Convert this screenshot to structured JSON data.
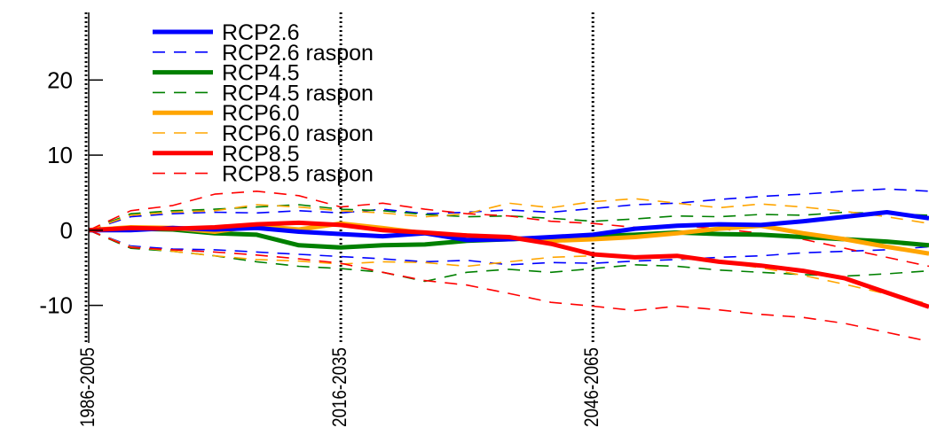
{
  "chart_data": {
    "type": "line",
    "xlim": [
      1995,
      2095
    ],
    "ylim": [
      -15,
      29
    ],
    "grid": false,
    "legend_placement": "top-left",
    "yticks": [
      {
        "value": 20,
        "label": "20"
      },
      {
        "value": 10,
        "label": "10"
      },
      {
        "value": 0,
        "label": "0"
      },
      {
        "value": -10,
        "label": "-10"
      }
    ],
    "xticks": [
      {
        "value": 1995,
        "label": "1986-2005"
      },
      {
        "value": 2025,
        "label": "2016-2035"
      },
      {
        "value": 2055,
        "label": "2046-2065"
      }
    ],
    "series": [
      {
        "name": "RCP2.6",
        "color": "#0000ff",
        "style": "solid",
        "x": [
          1995,
          2000,
          2005,
          2010,
          2015,
          2020,
          2025,
          2030,
          2035,
          2040,
          2045,
          2050,
          2055,
          2060,
          2065,
          2070,
          2075,
          2080,
          2085,
          2090,
          2095
        ],
        "y": [
          0,
          0,
          0.3,
          0.1,
          0.3,
          -0.2,
          -0.5,
          -0.8,
          -0.4,
          -1.3,
          -1.2,
          -0.9,
          -0.6,
          0.2,
          0.6,
          0.8,
          0.7,
          1.2,
          1.8,
          2.4,
          1.6
        ]
      },
      {
        "name": "RCP2.6 raspon",
        "color": "#0000ff",
        "style": "dashed",
        "x": [
          1995,
          2000,
          2005,
          2010,
          2015,
          2020,
          2025,
          2030,
          2035,
          2040,
          2045,
          2050,
          2055,
          2060,
          2065,
          2070,
          2075,
          2080,
          2085,
          2090,
          2095,
          1995,
          2000,
          2005,
          2010,
          2015,
          2020,
          2025,
          2030,
          2035,
          2040,
          2045,
          2050,
          2055,
          2060,
          2065,
          2070,
          2075,
          2080,
          2085,
          2090,
          2095
        ],
        "y": [
          0,
          1.8,
          2.2,
          2.4,
          2.3,
          2.6,
          2.3,
          2.8,
          2.2,
          2.4,
          2.7,
          2.4,
          2.9,
          3.4,
          3.6,
          4.1,
          4.5,
          4.8,
          5.2,
          5.5,
          5.2,
          0,
          -2.1,
          -2.5,
          -2.6,
          -2.9,
          -3.2,
          -3.5,
          -3.8,
          -4.2,
          -4.0,
          -4.6,
          -4.3,
          -4.4,
          -4.1,
          -3.9,
          -3.6,
          -3.4,
          -3.0,
          -2.8,
          -2.6,
          -2.2
        ]
      },
      {
        "name": "RCP4.5",
        "color": "#008000",
        "style": "solid",
        "x": [
          1995,
          2000,
          2005,
          2010,
          2015,
          2020,
          2025,
          2030,
          2035,
          2040,
          2045,
          2050,
          2055,
          2060,
          2065,
          2070,
          2075,
          2080,
          2085,
          2090,
          2095
        ],
        "y": [
          0,
          0.2,
          0.1,
          -0.4,
          -0.6,
          -2.0,
          -2.3,
          -2.0,
          -1.9,
          -1.4,
          -1.2,
          -1.0,
          -0.8,
          -0.6,
          -0.3,
          -0.5,
          -0.6,
          -0.9,
          -1.2,
          -1.5,
          -2.0
        ]
      },
      {
        "name": "RCP4.5 raspon",
        "color": "#008000",
        "style": "dashed",
        "x": [
          1995,
          2000,
          2005,
          2010,
          2015,
          2020,
          2025,
          2030,
          2035,
          2040,
          2045,
          2050,
          2055,
          2060,
          2065,
          2070,
          2075,
          2080,
          2085,
          2090,
          2095,
          1995,
          2000,
          2005,
          2010,
          2015,
          2020,
          2025,
          2030,
          2035,
          2040,
          2045,
          2050,
          2055,
          2060,
          2065,
          2070,
          2075,
          2080,
          2085,
          2090,
          2095
        ],
        "y": [
          0,
          2.2,
          2.6,
          2.8,
          3.1,
          3.4,
          2.8,
          2.6,
          2.1,
          1.8,
          1.9,
          1.6,
          1.2,
          1.5,
          1.9,
          1.8,
          2.1,
          2.0,
          2.4,
          2.2,
          2.0,
          0,
          -2.4,
          -2.8,
          -3.4,
          -4.2,
          -4.8,
          -5.1,
          -5.6,
          -6.8,
          -5.6,
          -5.2,
          -5.6,
          -5.1,
          -4.6,
          -4.8,
          -5.3,
          -5.6,
          -5.9,
          -6.1,
          -5.8,
          -5.4
        ]
      },
      {
        "name": "RCP6.0",
        "color": "#ffa500",
        "style": "solid",
        "x": [
          1995,
          2000,
          2005,
          2010,
          2015,
          2020,
          2025,
          2030,
          2035,
          2040,
          2045,
          2050,
          2055,
          2060,
          2065,
          2070,
          2075,
          2080,
          2085,
          2090,
          2095
        ],
        "y": [
          0,
          0.4,
          0.3,
          -0.2,
          0.6,
          0.1,
          0.9,
          0.3,
          -0.4,
          -0.7,
          -1.0,
          -1.4,
          -1.2,
          -0.9,
          -0.4,
          0.2,
          0.6,
          -0.4,
          -1.2,
          -2.2,
          -3.1
        ]
      },
      {
        "name": "RCP6.0 raspon",
        "color": "#ffa500",
        "style": "dashed",
        "x": [
          1995,
          2000,
          2005,
          2010,
          2015,
          2020,
          2025,
          2030,
          2035,
          2040,
          2045,
          2050,
          2055,
          2060,
          2065,
          2070,
          2075,
          2080,
          2085,
          2090,
          2095,
          1995,
          2000,
          2005,
          2010,
          2015,
          2020,
          2025,
          2030,
          2035,
          2040,
          2045,
          2050,
          2055,
          2060,
          2065,
          2070,
          2075,
          2080,
          2085,
          2090,
          2095
        ],
        "y": [
          0,
          2.0,
          2.4,
          2.6,
          3.4,
          3.1,
          2.6,
          2.3,
          1.8,
          2.2,
          3.6,
          3.0,
          3.8,
          4.2,
          3.6,
          3.0,
          3.5,
          3.1,
          2.5,
          1.8,
          0.9,
          0,
          -2.2,
          -2.8,
          -3.4,
          -3.9,
          -4.1,
          -4.5,
          -4.2,
          -4.3,
          -4.8,
          -4.2,
          -3.6,
          -3.4,
          -3.5,
          -3.7,
          -4.2,
          -5.0,
          -6.0,
          -7.2,
          -8.5,
          -9.8
        ]
      },
      {
        "name": "RCP8.5",
        "color": "#ff0000",
        "style": "solid",
        "x": [
          1995,
          2000,
          2005,
          2010,
          2015,
          2020,
          2025,
          2030,
          2035,
          2040,
          2045,
          2050,
          2055,
          2060,
          2065,
          2070,
          2075,
          2080,
          2085,
          2090,
          2095
        ],
        "y": [
          0,
          0.3,
          0.2,
          0.4,
          0.8,
          1.0,
          0.7,
          0.0,
          -0.3,
          -0.7,
          -0.9,
          -1.8,
          -3.2,
          -3.6,
          -3.4,
          -4.2,
          -4.7,
          -5.4,
          -6.4,
          -8.3,
          -10.2
        ]
      },
      {
        "name": "RCP8.5 raspon",
        "color": "#ff0000",
        "style": "dashed",
        "x": [
          1995,
          2000,
          2005,
          2010,
          2015,
          2020,
          2025,
          2030,
          2035,
          2040,
          2045,
          2050,
          2055,
          2060,
          2065,
          2070,
          2075,
          2080,
          2085,
          2090,
          2095,
          1995,
          2000,
          2005,
          2010,
          2015,
          2020,
          2025,
          2030,
          2035,
          2040,
          2045,
          2050,
          2055,
          2060,
          2065,
          2070,
          2075,
          2080,
          2085,
          2090,
          2095
        ],
        "y": [
          0,
          2.6,
          3.3,
          4.8,
          5.2,
          4.6,
          3.1,
          3.6,
          2.8,
          2.2,
          1.9,
          1.2,
          0.9,
          0.4,
          0.6,
          0.2,
          -0.4,
          -1.2,
          -2.4,
          -3.6,
          -4.8,
          0,
          -2.3,
          -2.6,
          -2.9,
          -3.3,
          -3.8,
          -4.4,
          -5.6,
          -6.7,
          -7.3,
          -8.4,
          -9.6,
          -10.1,
          -10.7,
          -10.1,
          -10.6,
          -11.2,
          -11.6,
          -12.4,
          -13.6,
          -14.8
        ]
      }
    ]
  }
}
